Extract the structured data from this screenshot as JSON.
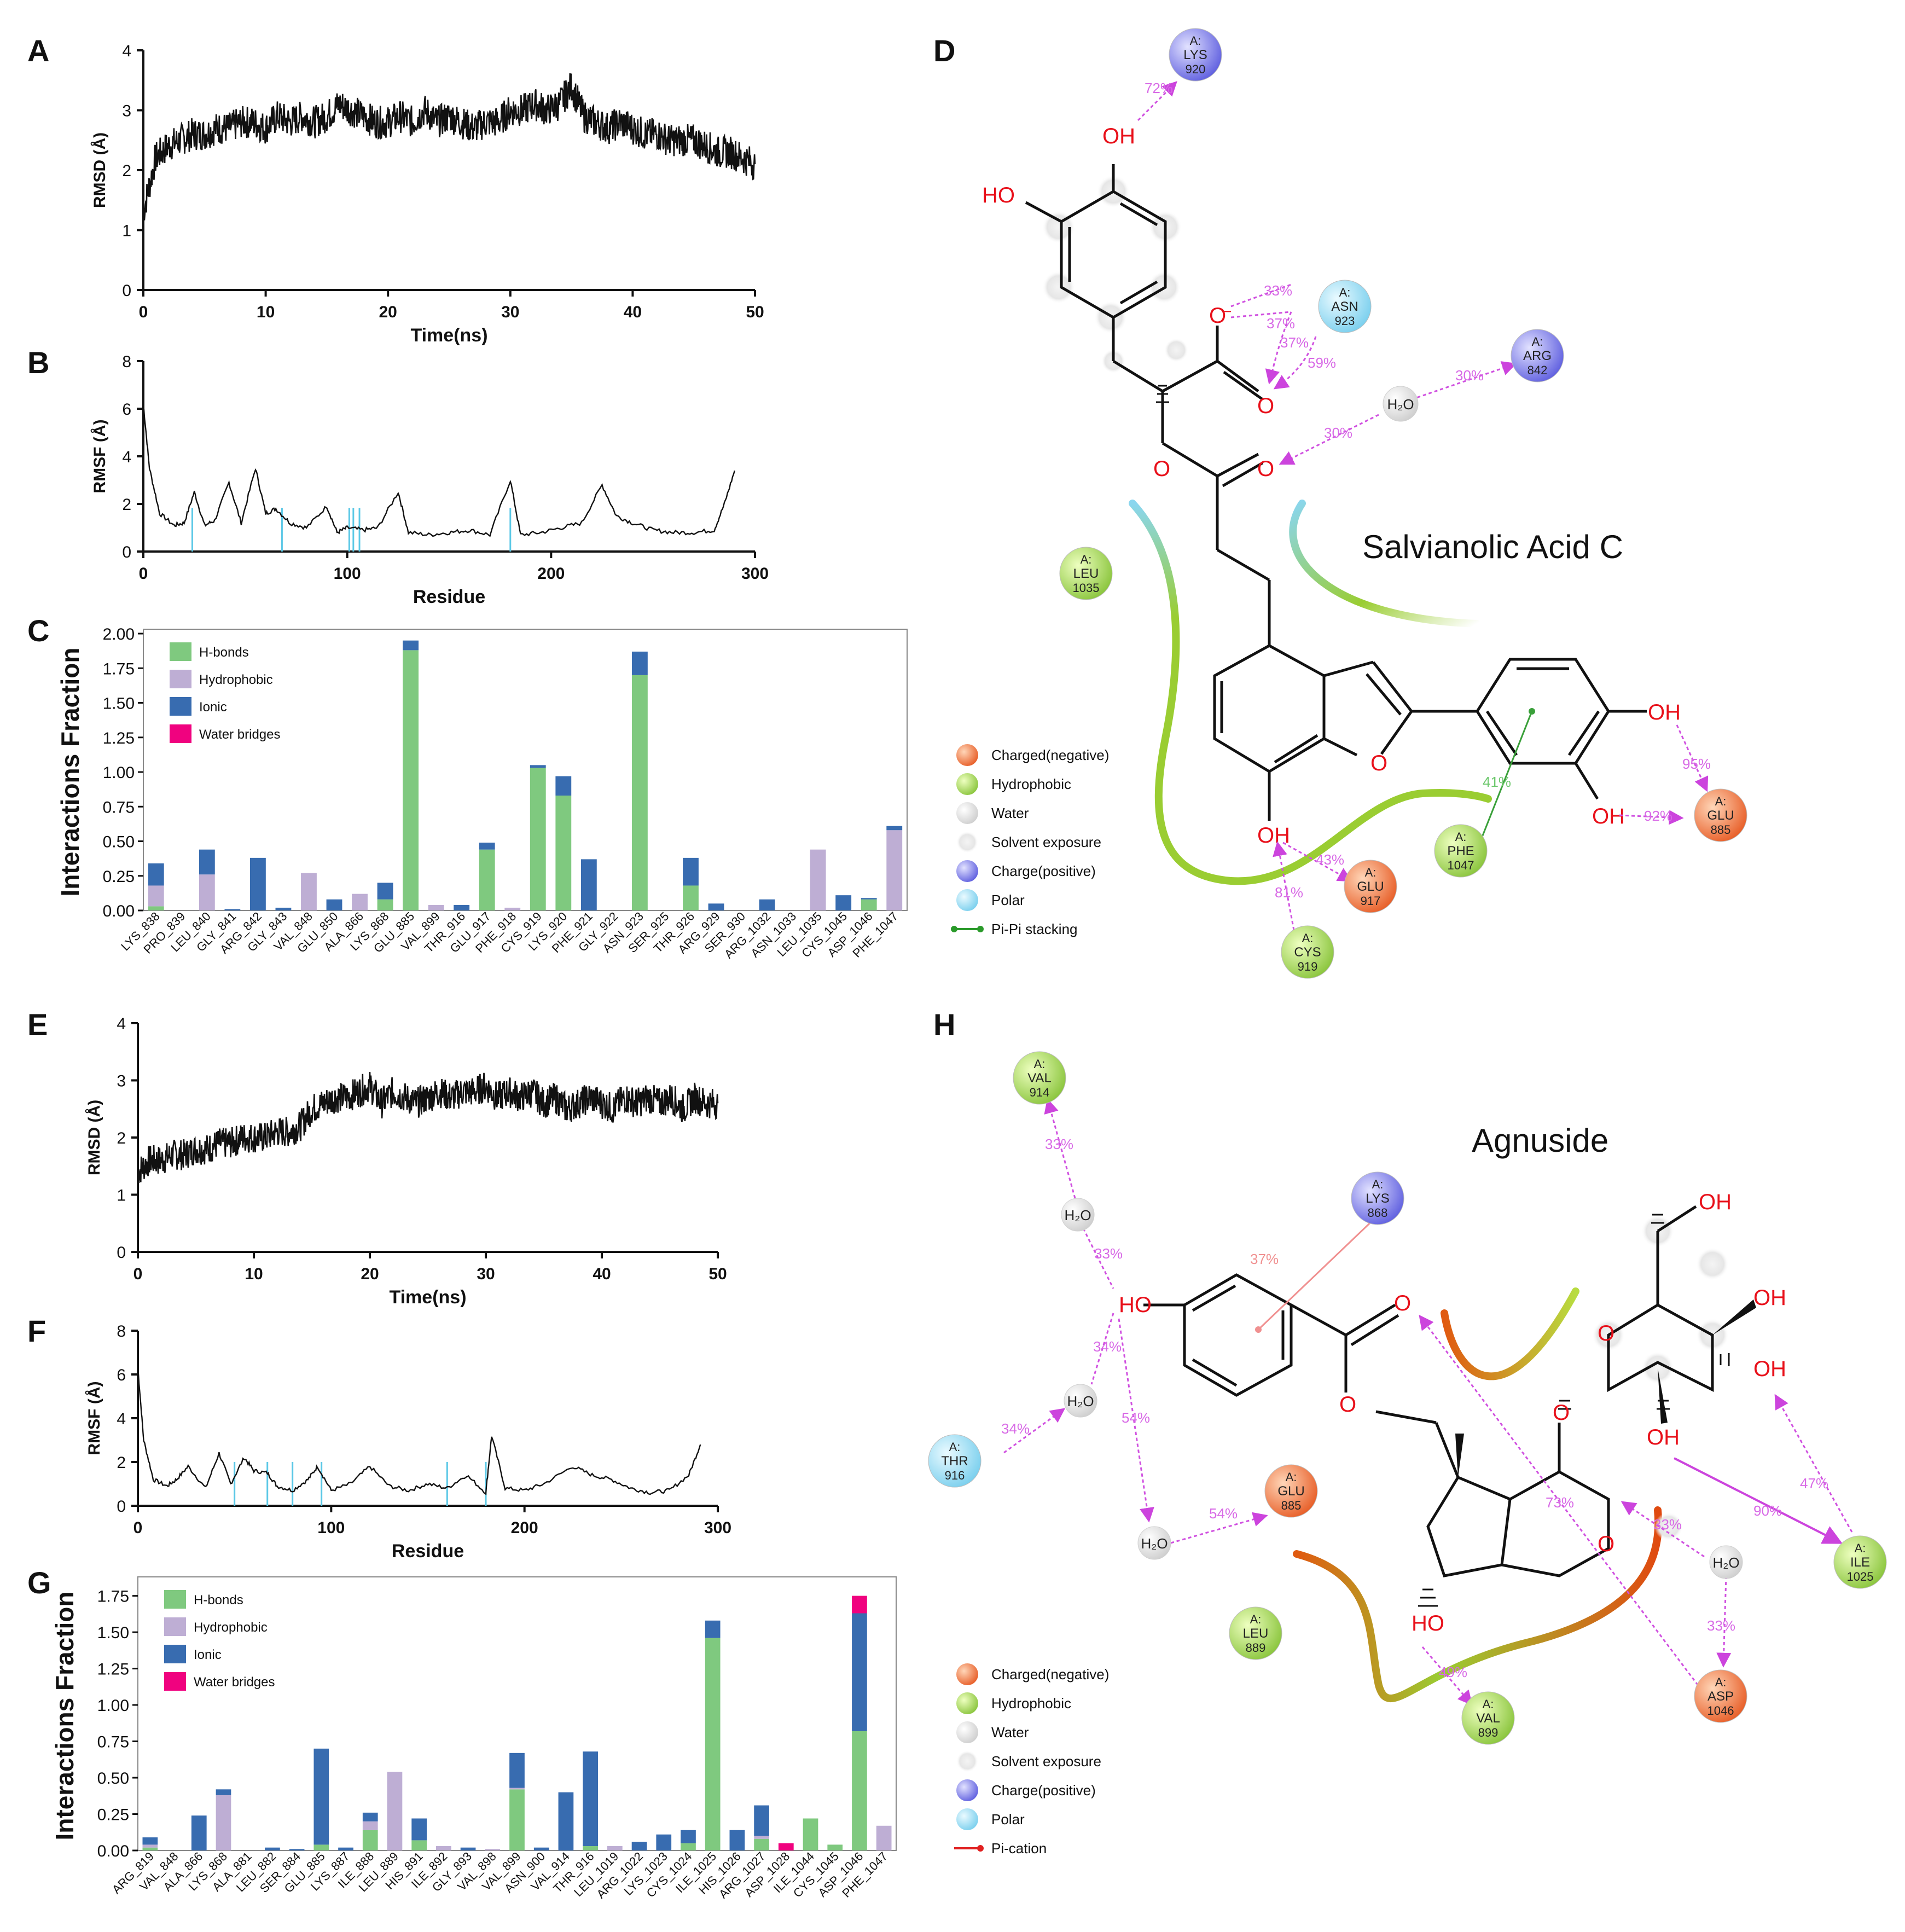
{
  "figure": {
    "panel_letters": [
      "A",
      "B",
      "C",
      "D",
      "E",
      "F",
      "G",
      "H"
    ]
  },
  "colors": {
    "line": "#111111",
    "hbond": "#7fc97f",
    "hydrophobic": "#beaed4",
    "ionic": "#386cb0",
    "water_bridge": "#f0027f",
    "rmsf_marker": "#5bc8e6",
    "charged_negative": "#e8672a",
    "hydrophobic_residue": "#9acd32",
    "water": "#d8d8d8",
    "charge_positive": "#6e6ee6",
    "polar": "#8ed8f0",
    "pipi": "#2a9a2a",
    "pication": "#e02020",
    "hbond_arrow": "#d050e0"
  },
  "chart_data": [
    {
      "id": "A",
      "type": "line",
      "xlabel": "Time(ns)",
      "ylabel": "RMSD (Å)",
      "xlim": [
        0,
        50
      ],
      "ylim": [
        0,
        4
      ],
      "xticks": [
        0,
        10,
        20,
        30,
        40,
        50
      ],
      "yticks": [
        0,
        1,
        2,
        3,
        4
      ],
      "x": [
        0,
        1,
        2,
        3,
        4,
        5,
        6,
        7,
        8,
        9,
        10,
        11,
        12,
        13,
        14,
        15,
        16,
        17,
        18,
        19,
        20,
        21,
        22,
        23,
        24,
        25,
        26,
        27,
        28,
        29,
        30,
        31,
        32,
        33,
        34,
        35,
        36,
        37,
        38,
        39,
        40,
        41,
        42,
        43,
        44,
        45,
        46,
        47,
        48,
        49,
        50
      ],
      "y": [
        1.3,
        2.2,
        2.4,
        2.5,
        2.6,
        2.6,
        2.7,
        2.7,
        2.8,
        2.8,
        2.7,
        2.9,
        2.8,
        2.9,
        2.8,
        2.9,
        3.1,
        3.0,
        2.9,
        2.8,
        2.8,
        2.9,
        2.8,
        3.0,
        2.8,
        2.9,
        2.8,
        2.7,
        2.8,
        2.8,
        3.0,
        3.0,
        3.1,
        3.0,
        3.1,
        3.4,
        2.9,
        2.8,
        2.7,
        2.8,
        2.7,
        2.6,
        2.6,
        2.5,
        2.5,
        2.5,
        2.4,
        2.3,
        2.3,
        2.2,
        2.1
      ]
    },
    {
      "id": "B",
      "type": "line",
      "xlabel": "Residue",
      "ylabel": "RMSF (Å)",
      "xlim": [
        0,
        300
      ],
      "ylim": [
        0,
        8
      ],
      "xticks": [
        0,
        100,
        200,
        300
      ],
      "yticks": [
        0,
        2,
        4,
        6,
        8
      ],
      "x": [
        0,
        3,
        8,
        15,
        20,
        25,
        30,
        35,
        42,
        48,
        55,
        60,
        65,
        72,
        80,
        90,
        95,
        100,
        108,
        115,
        125,
        130,
        140,
        150,
        160,
        170,
        180,
        185,
        195,
        205,
        215,
        225,
        232,
        240,
        250,
        260,
        270,
        280,
        285,
        290
      ],
      "y": [
        6.2,
        3.5,
        1.6,
        1.1,
        1.2,
        2.5,
        1.1,
        1.3,
        2.9,
        1.2,
        3.5,
        1.6,
        1.8,
        1.2,
        1.0,
        1.9,
        0.8,
        1.0,
        0.9,
        1.0,
        2.5,
        0.8,
        0.7,
        0.8,
        0.9,
        0.7,
        3.0,
        0.7,
        0.8,
        1.0,
        1.2,
        2.8,
        1.5,
        1.2,
        0.9,
        0.8,
        0.8,
        0.9,
        2.0,
        3.4
      ],
      "markers": [
        24,
        68,
        101,
        103,
        106,
        180
      ]
    },
    {
      "id": "C",
      "type": "bar",
      "ylabel": "Interactions Fraction",
      "ylim": [
        0,
        2.0
      ],
      "yticks": [
        "0.00",
        "0.25",
        "0.50",
        "0.75",
        "1.00",
        "1.25",
        "1.50",
        "1.75",
        "2.00"
      ],
      "legend": [
        "H-bonds",
        "Hydrophobic",
        "Ionic",
        "Water bridges"
      ],
      "categories": [
        "LYS_838",
        "PRO_839",
        "LEU_840",
        "GLY_841",
        "ARG_842",
        "GLY_843",
        "VAL_848",
        "GLU_850",
        "ALA_866",
        "LYS_868",
        "GLU_885",
        "VAL_899",
        "THR_916",
        "GLU_917",
        "PHE_918",
        "CYS_919",
        "LYS_920",
        "PHE_921",
        "GLY_922",
        "ASN_923",
        "SER_925",
        "THR_926",
        "ARG_929",
        "SER_930",
        "ARG_1032",
        "ASN_1033",
        "LEU_1035",
        "CYS_1045",
        "ASP_1046",
        "PHE_1047"
      ],
      "series": [
        {
          "name": "H-bonds",
          "values": [
            0.03,
            0,
            0,
            0,
            0,
            0,
            0,
            0,
            0,
            0.08,
            1.88,
            0,
            0,
            0.44,
            0,
            1.03,
            0.83,
            0,
            0,
            1.7,
            0,
            0.18,
            0,
            0,
            0,
            0,
            0,
            0,
            0.08,
            0
          ]
        },
        {
          "name": "Hydrophobic",
          "values": [
            0.15,
            0,
            0.26,
            0,
            0,
            0,
            0.27,
            0,
            0.12,
            0,
            0,
            0.04,
            0,
            0,
            0.02,
            0,
            0,
            0,
            0,
            0,
            0,
            0,
            0,
            0,
            0,
            0,
            0.44,
            0,
            0,
            0.58
          ]
        },
        {
          "name": "Ionic",
          "values": [
            0.16,
            0,
            0.18,
            0.01,
            0.38,
            0.02,
            0,
            0.08,
            0,
            0.12,
            0.07,
            0,
            0.04,
            0.05,
            0,
            0.02,
            0.14,
            0.37,
            0,
            0.17,
            0,
            0.2,
            0.05,
            0,
            0.08,
            0,
            0,
            0.11,
            0.01,
            0.03
          ]
        },
        {
          "name": "Water bridges",
          "values": [
            0,
            0,
            0,
            0,
            0,
            0,
            0,
            0,
            0,
            0,
            0,
            0,
            0,
            0,
            0,
            0,
            0,
            0,
            0,
            0,
            0,
            0,
            0,
            0,
            0,
            0,
            0,
            0,
            0,
            0
          ]
        }
      ]
    },
    {
      "id": "E",
      "type": "line",
      "xlabel": "Time(ns)",
      "ylabel": "RMSD (Å)",
      "xlim": [
        0,
        50
      ],
      "ylim": [
        0,
        4
      ],
      "xticks": [
        0,
        10,
        20,
        30,
        40,
        50
      ],
      "yticks": [
        0,
        1,
        2,
        3,
        4
      ],
      "x": [
        0,
        1,
        2,
        3,
        4,
        5,
        6,
        7,
        8,
        9,
        10,
        11,
        12,
        13,
        14,
        15,
        16,
        17,
        18,
        19,
        20,
        21,
        22,
        23,
        24,
        25,
        26,
        27,
        28,
        29,
        30,
        31,
        32,
        33,
        34,
        35,
        36,
        37,
        38,
        39,
        40,
        41,
        42,
        43,
        44,
        45,
        46,
        47,
        48,
        49,
        50
      ],
      "y": [
        1.4,
        1.6,
        1.6,
        1.7,
        1.7,
        1.8,
        1.8,
        1.9,
        1.9,
        2.0,
        2.0,
        2.0,
        2.1,
        2.1,
        2.2,
        2.5,
        2.6,
        2.7,
        2.7,
        2.8,
        2.9,
        2.6,
        2.8,
        2.7,
        2.6,
        2.7,
        2.8,
        2.7,
        2.8,
        2.8,
        2.9,
        2.7,
        2.8,
        2.7,
        2.8,
        2.6,
        2.7,
        2.5,
        2.6,
        2.7,
        2.6,
        2.5,
        2.7,
        2.6,
        2.7,
        2.6,
        2.7,
        2.5,
        2.7,
        2.6,
        2.6
      ]
    },
    {
      "id": "F",
      "type": "line",
      "xlabel": "Residue",
      "ylabel": "RMSF (Å)",
      "xlim": [
        0,
        300
      ],
      "ylim": [
        0,
        8
      ],
      "xticks": [
        0,
        100,
        200,
        300
      ],
      "yticks": [
        0,
        2,
        4,
        6,
        8
      ],
      "x": [
        0,
        3,
        8,
        15,
        20,
        26,
        35,
        42,
        48,
        55,
        60,
        67,
        72,
        80,
        88,
        93,
        100,
        110,
        120,
        130,
        140,
        150,
        160,
        170,
        180,
        183,
        190,
        200,
        210,
        225,
        235,
        245,
        255,
        265,
        275,
        285,
        291
      ],
      "y": [
        6.3,
        3.0,
        1.2,
        0.9,
        1.2,
        1.8,
        0.8,
        2.4,
        1.0,
        2.2,
        1.6,
        1.5,
        0.9,
        0.7,
        1.2,
        1.8,
        0.7,
        1.0,
        1.8,
        0.9,
        0.7,
        1.0,
        0.8,
        1.4,
        0.6,
        3.2,
        0.8,
        0.7,
        1.0,
        1.8,
        1.4,
        1.2,
        0.8,
        0.6,
        0.7,
        1.4,
        2.8
      ],
      "markers": [
        50,
        67,
        80,
        95,
        160,
        180
      ]
    },
    {
      "id": "G",
      "type": "bar",
      "ylabel": "Interactions Fraction",
      "ylim": [
        0,
        1.85
      ],
      "yticks": [
        "0.00",
        "0.25",
        "0.50",
        "0.75",
        "1.00",
        "1.25",
        "1.50",
        "1.75"
      ],
      "legend": [
        "H-bonds",
        "Hydrophobic",
        "Ionic",
        "Water bridges"
      ],
      "categories": [
        "ARG_819",
        "VAL_848",
        "ALA_866",
        "LYS_868",
        "ALA_881",
        "LEU_882",
        "SER_884",
        "GLU_885",
        "LYS_887",
        "ILE_888",
        "LEU_889",
        "HIS_891",
        "ILE_892",
        "GLY_893",
        "VAL_898",
        "VAL_899",
        "ASN_900",
        "VAL_914",
        "THR_916",
        "LEU_1019",
        "ARG_1022",
        "LYS_1023",
        "CYS_1024",
        "ILE_1025",
        "HIS_1026",
        "ARG_1027",
        "ASP_1028",
        "ILE_1044",
        "CYS_1045",
        "ASP_1046",
        "PHE_1047"
      ],
      "series": [
        {
          "name": "H-bonds",
          "values": [
            0.02,
            0,
            0,
            0,
            0,
            0,
            0,
            0.04,
            0,
            0.14,
            0,
            0.07,
            0,
            0,
            0,
            0.42,
            0,
            0,
            0.03,
            0,
            0,
            0,
            0.05,
            1.46,
            0,
            0.08,
            0,
            0.22,
            0.04,
            0.82,
            0
          ]
        },
        {
          "name": "Hydrophobic",
          "values": [
            0.02,
            0,
            0,
            0.38,
            0,
            0,
            0,
            0,
            0,
            0.06,
            0.54,
            0,
            0.03,
            0,
            0.01,
            0.01,
            0,
            0,
            0,
            0.03,
            0,
            0,
            0,
            0,
            0,
            0.02,
            0,
            0,
            0,
            0,
            0.17
          ]
        },
        {
          "name": "Ionic",
          "values": [
            0.05,
            0,
            0.24,
            0.04,
            0,
            0.02,
            0.01,
            0.66,
            0.02,
            0.06,
            0,
            0.15,
            0,
            0.02,
            0,
            0.24,
            0.02,
            0.4,
            0.65,
            0,
            0.06,
            0.11,
            0.09,
            0.12,
            0.14,
            0.21,
            0,
            0,
            0,
            0.81,
            0
          ]
        },
        {
          "name": "Water bridges",
          "values": [
            0,
            0,
            0,
            0,
            0,
            0,
            0,
            0,
            0,
            0,
            0,
            0,
            0,
            0,
            0,
            0,
            0,
            0,
            0,
            0,
            0,
            0,
            0,
            0,
            0,
            0,
            0.05,
            0,
            0,
            0.12,
            0
          ]
        }
      ]
    }
  ],
  "panel_D": {
    "title": "Salvianolic Acid C",
    "residues": [
      {
        "chain": "A:",
        "name": "LYS",
        "num": "920",
        "kind": "positive"
      },
      {
        "chain": "A:",
        "name": "ASN",
        "num": "923",
        "kind": "polar"
      },
      {
        "chain": "A:",
        "name": "ARG",
        "num": "842",
        "kind": "positive"
      },
      {
        "chain": "A:",
        "name": "LEU",
        "num": "1035",
        "kind": "hydrophobic"
      },
      {
        "chain": "A:",
        "name": "GLU",
        "num": "885",
        "kind": "negative"
      },
      {
        "chain": "A:",
        "name": "PHE",
        "num": "1047",
        "kind": "hydrophobic"
      },
      {
        "chain": "A:",
        "name": "GLU",
        "num": "917",
        "kind": "negative"
      },
      {
        "chain": "A:",
        "name": "CYS",
        "num": "919",
        "kind": "hydrophobic"
      }
    ],
    "atoms": [
      "OH",
      "HO",
      "O",
      "O",
      "O",
      "O",
      "O",
      "OH",
      "OH",
      "OH"
    ],
    "water": "H₂O",
    "percents": [
      "72%",
      "33%",
      "37%",
      "37%",
      "59%",
      "30%",
      "30%",
      "95%",
      "92%",
      "41%",
      "43%",
      "81%"
    ],
    "legend": [
      "Charged(negative)",
      "Hydrophobic",
      "Water",
      "Solvent exposure",
      "Charge(positive)",
      "Polar",
      "Pi-Pi stacking"
    ]
  },
  "panel_H": {
    "title": "Agnuside",
    "residues": [
      {
        "chain": "A:",
        "name": "VAL",
        "num": "914",
        "kind": "hydrophobic"
      },
      {
        "chain": "A:",
        "name": "LYS",
        "num": "868",
        "kind": "positive"
      },
      {
        "chain": "A:",
        "name": "THR",
        "num": "916",
        "kind": "polar"
      },
      {
        "chain": "A:",
        "name": "GLU",
        "num": "885",
        "kind": "negative"
      },
      {
        "chain": "A:",
        "name": "LEU",
        "num": "889",
        "kind": "hydrophobic"
      },
      {
        "chain": "A:",
        "name": "VAL",
        "num": "899",
        "kind": "hydrophobic"
      },
      {
        "chain": "A:",
        "name": "ASP",
        "num": "1046",
        "kind": "negative"
      },
      {
        "chain": "A:",
        "name": "ILE",
        "num": "1025",
        "kind": "hydrophobic"
      }
    ],
    "atoms": [
      "HO",
      "O",
      "O",
      "O",
      "O",
      "OH",
      "OH",
      "OH",
      "OH",
      "HO"
    ],
    "water": "H₂O",
    "percents": [
      "33%",
      "33%",
      "37%",
      "34%",
      "34%",
      "54%",
      "54%",
      "73%",
      "33%",
      "33%",
      "47%",
      "90%",
      "49%"
    ],
    "legend": [
      "Charged(negative)",
      "Hydrophobic",
      "Water",
      "Solvent exposure",
      "Charge(positive)",
      "Polar",
      "Pi-cation"
    ]
  }
}
